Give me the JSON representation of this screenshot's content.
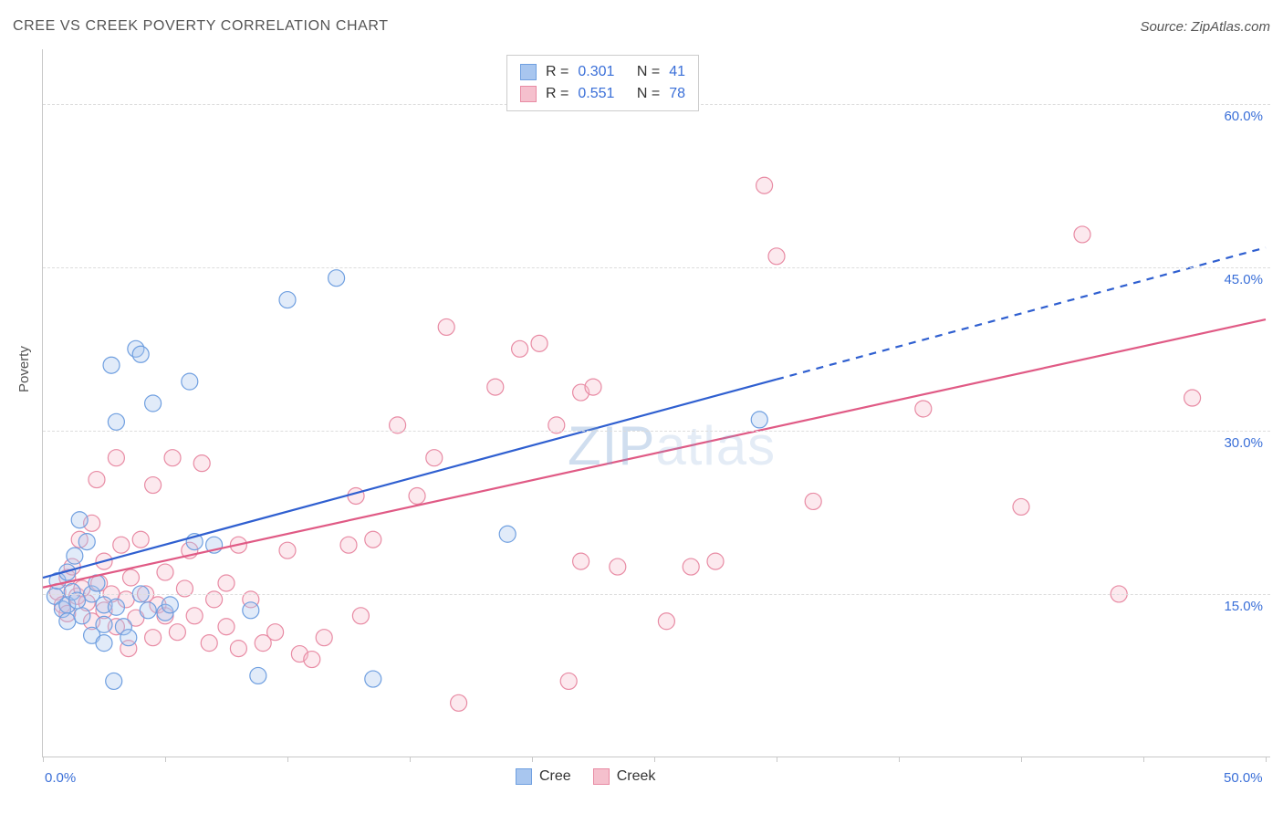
{
  "title": "CREE VS CREEK POVERTY CORRELATION CHART",
  "source": "Source: ZipAtlas.com",
  "watermark_zip": "ZIP",
  "watermark_atlas": "atlas",
  "ylabel": "Poverty",
  "chart": {
    "type": "scatter",
    "background_color": "#ffffff",
    "grid_color": "#dddddd",
    "axis_color": "#c8c8c8",
    "label_text_color": "#555555",
    "tick_text_color": "#3a6fd8",
    "tick_fontsize": 15,
    "title_fontsize": 16,
    "xlim": [
      0,
      50
    ],
    "ylim": [
      0,
      65
    ],
    "xtick_positions": [
      0,
      5,
      10,
      15,
      20,
      25,
      30,
      35,
      40,
      45,
      50
    ],
    "xtick_labels": {
      "0": "0.0%",
      "50": "50.0%"
    },
    "ytick_positions": [
      15,
      30,
      45,
      60
    ],
    "ytick_labels": {
      "15": "15.0%",
      "30": "30.0%",
      "45": "45.0%",
      "60": "60.0%"
    },
    "marker_radius": 9,
    "marker_fill_opacity": 0.35,
    "marker_stroke_width": 1.2,
    "line_width": 2.2,
    "series": {
      "cree": {
        "label": "Cree",
        "color_fill": "#a8c6ef",
        "color_stroke": "#6f9fe0",
        "line_color": "#2f5fd0",
        "R": "0.301",
        "N": "41",
        "trend_solid": {
          "x1": 0,
          "y1": 16.5,
          "x2": 30,
          "y2": 34.7
        },
        "trend_dash": {
          "x1": 30,
          "y1": 34.7,
          "x2": 50,
          "y2": 46.8
        },
        "points": [
          [
            0.5,
            14.8
          ],
          [
            0.6,
            16.2
          ],
          [
            0.8,
            13.6
          ],
          [
            1.0,
            17.0
          ],
          [
            1.0,
            14.0
          ],
          [
            1.0,
            12.5
          ],
          [
            1.2,
            15.2
          ],
          [
            1.3,
            18.5
          ],
          [
            1.5,
            21.8
          ],
          [
            1.4,
            14.4
          ],
          [
            1.6,
            13.0
          ],
          [
            1.8,
            19.8
          ],
          [
            2.0,
            15.0
          ],
          [
            2.0,
            11.2
          ],
          [
            2.2,
            16.0
          ],
          [
            2.5,
            14.0
          ],
          [
            2.5,
            12.2
          ],
          [
            2.5,
            10.5
          ],
          [
            2.8,
            36.0
          ],
          [
            3.0,
            30.8
          ],
          [
            3.0,
            13.8
          ],
          [
            3.3,
            12.0
          ],
          [
            3.5,
            11.0
          ],
          [
            3.8,
            37.5
          ],
          [
            4.0,
            37.0
          ],
          [
            4.0,
            15.0
          ],
          [
            4.3,
            13.5
          ],
          [
            4.5,
            32.5
          ],
          [
            5.0,
            13.3
          ],
          [
            5.2,
            14.0
          ],
          [
            6.0,
            34.5
          ],
          [
            6.2,
            19.8
          ],
          [
            7.0,
            19.5
          ],
          [
            8.5,
            13.5
          ],
          [
            8.8,
            7.5
          ],
          [
            10.0,
            42.0
          ],
          [
            12.0,
            44.0
          ],
          [
            13.5,
            7.2
          ],
          [
            19.0,
            20.5
          ],
          [
            29.3,
            31.0
          ],
          [
            2.9,
            7.0
          ]
        ]
      },
      "creek": {
        "label": "Creek",
        "color_fill": "#f5c0cd",
        "color_stroke": "#e88ba4",
        "line_color": "#e05a85",
        "R": "0.551",
        "N": "78",
        "trend_solid": {
          "x1": 0,
          "y1": 15.6,
          "x2": 50,
          "y2": 40.2
        },
        "points": [
          [
            0.6,
            15.2
          ],
          [
            0.8,
            14.0
          ],
          [
            1.0,
            16.5
          ],
          [
            1.0,
            13.2
          ],
          [
            1.2,
            17.5
          ],
          [
            1.4,
            14.8
          ],
          [
            1.5,
            20.0
          ],
          [
            1.6,
            15.5
          ],
          [
            1.8,
            14.2
          ],
          [
            2.0,
            21.5
          ],
          [
            2.0,
            12.5
          ],
          [
            2.2,
            25.5
          ],
          [
            2.3,
            16.0
          ],
          [
            2.5,
            18.0
          ],
          [
            2.5,
            13.5
          ],
          [
            2.8,
            15.0
          ],
          [
            3.0,
            27.5
          ],
          [
            3.0,
            12.0
          ],
          [
            3.2,
            19.5
          ],
          [
            3.4,
            14.5
          ],
          [
            3.5,
            10.0
          ],
          [
            3.6,
            16.5
          ],
          [
            3.8,
            12.8
          ],
          [
            4.0,
            20.0
          ],
          [
            4.2,
            15.0
          ],
          [
            4.5,
            25.0
          ],
          [
            4.5,
            11.0
          ],
          [
            4.7,
            14.0
          ],
          [
            5.0,
            17.0
          ],
          [
            5.0,
            13.0
          ],
          [
            5.3,
            27.5
          ],
          [
            5.5,
            11.5
          ],
          [
            5.8,
            15.5
          ],
          [
            6.0,
            19.0
          ],
          [
            6.2,
            13.0
          ],
          [
            6.5,
            27.0
          ],
          [
            6.8,
            10.5
          ],
          [
            7.0,
            14.5
          ],
          [
            7.5,
            16.0
          ],
          [
            7.5,
            12.0
          ],
          [
            8.0,
            19.5
          ],
          [
            8.0,
            10.0
          ],
          [
            8.5,
            14.5
          ],
          [
            9.0,
            10.5
          ],
          [
            9.5,
            11.5
          ],
          [
            10.0,
            19.0
          ],
          [
            10.5,
            9.5
          ],
          [
            11.0,
            9.0
          ],
          [
            11.5,
            11.0
          ],
          [
            12.5,
            19.5
          ],
          [
            12.8,
            24.0
          ],
          [
            13.0,
            13.0
          ],
          [
            13.5,
            20.0
          ],
          [
            14.5,
            30.5
          ],
          [
            15.3,
            24.0
          ],
          [
            16.0,
            27.5
          ],
          [
            16.5,
            39.5
          ],
          [
            17.0,
            5.0
          ],
          [
            18.5,
            34.0
          ],
          [
            19.5,
            37.5
          ],
          [
            20.3,
            38.0
          ],
          [
            21.0,
            30.5
          ],
          [
            21.5,
            7.0
          ],
          [
            22.0,
            33.5
          ],
          [
            22.0,
            18.0
          ],
          [
            22.5,
            34.0
          ],
          [
            23.5,
            17.5
          ],
          [
            25.5,
            12.5
          ],
          [
            26.5,
            17.5
          ],
          [
            27.5,
            18.0
          ],
          [
            29.5,
            52.5
          ],
          [
            30.0,
            46.0
          ],
          [
            31.5,
            23.5
          ],
          [
            36.0,
            32.0
          ],
          [
            40.0,
            23.0
          ],
          [
            42.5,
            48.0
          ],
          [
            44.0,
            15.0
          ],
          [
            47.0,
            33.0
          ]
        ]
      }
    }
  },
  "legend_top": {
    "r_label": "R =",
    "n_label": "N ="
  },
  "legend_bottom": {
    "cree": "Cree",
    "creek": "Creek"
  }
}
